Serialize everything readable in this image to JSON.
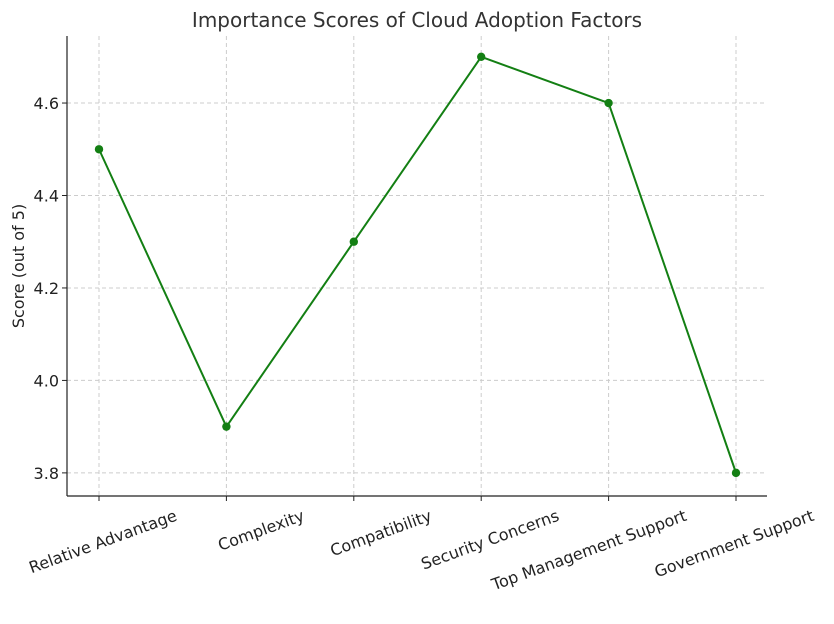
{
  "chart_data": {
    "type": "line",
    "title": "Importance Scores of Cloud Adoption Factors",
    "xlabel": "",
    "ylabel": "Score (out of 5)",
    "categories": [
      "Relative Advantage",
      "Complexity",
      "Compatibility",
      "Security Concerns",
      "Top Management Support",
      "Government Support"
    ],
    "values": [
      4.5,
      3.9,
      4.3,
      4.7,
      4.6,
      3.8
    ],
    "ylim": [
      3.75,
      4.745
    ],
    "yticks": [
      3.8,
      4.0,
      4.2,
      4.4,
      4.6
    ],
    "ytick_labels": [
      "3.8",
      "4.0",
      "4.2",
      "4.4",
      "4.6"
    ],
    "grid": true,
    "legend": "none",
    "series_color": "#137f13",
    "grid_color": "#cccccc"
  }
}
